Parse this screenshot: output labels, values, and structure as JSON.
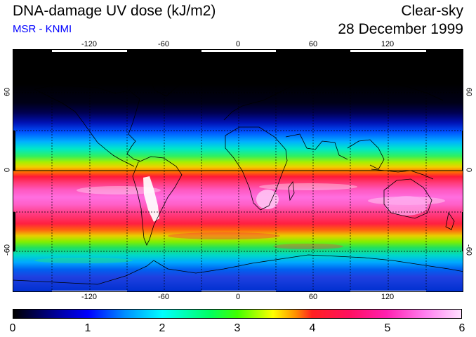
{
  "header": {
    "title": "DNA-damage UV dose (kJ/m2)",
    "source": "MSR - KNMI",
    "sky": "Clear-sky",
    "date": "28 December 1999"
  },
  "map": {
    "longitude_labels": [
      "-120",
      "-60",
      "0",
      "60",
      "120"
    ],
    "latitude_labels": [
      "60",
      "0",
      "-60"
    ],
    "colors": {
      "coastline": "#000000",
      "gridline": "#000000"
    }
  },
  "colorbar": {
    "unit": "kJ/m2",
    "labels": [
      "0",
      "1",
      "2",
      "3",
      "4",
      "5",
      "6"
    ],
    "min": 0,
    "max": 6
  }
}
